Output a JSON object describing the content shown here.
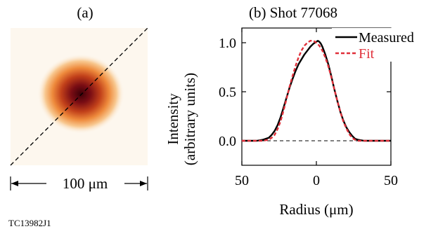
{
  "figure_id": "TC13982J1",
  "panel_a": {
    "label": "(a)",
    "scale_label": "100 μm"
  },
  "colors": {
    "measured": "#000000",
    "fit": "#e0303a",
    "spot_core": "#5a0010",
    "spot_mid": "#c1401a",
    "spot_outer": "#f4a86a",
    "spot_bg": "#fdf7ee"
  },
  "chart_data": {
    "type": "line",
    "title": "(b) Shot 77068",
    "xlabel": "Radius (μm)",
    "ylabel": [
      "Intensity",
      "(arbitrary units)"
    ],
    "xlim": [
      -50,
      50
    ],
    "ylim": [
      -0.25,
      1.15
    ],
    "x_ticks": [
      -50,
      0,
      50
    ],
    "x_tick_labels": [
      "50",
      "0",
      "50"
    ],
    "y_ticks": [
      0.0,
      0.5,
      1.0
    ],
    "y_tick_labels": [
      "0.0",
      "0.5",
      "1.0"
    ],
    "legend": "top-right",
    "series": [
      {
        "name": "Measured",
        "color": "#000000",
        "dash": "solid",
        "x": [
          -50,
          -40,
          -36,
          -32,
          -30,
          -28,
          -26,
          -24,
          -22,
          -20,
          -18,
          -16,
          -14,
          -12,
          -10,
          -8,
          -6,
          -4,
          -2,
          0,
          1,
          2,
          3,
          4,
          6,
          8,
          10,
          12,
          14,
          16,
          18,
          20,
          22,
          24,
          26,
          28,
          30,
          32,
          36,
          40,
          50
        ],
        "y": [
          0.0,
          0.0,
          0.01,
          0.03,
          0.06,
          0.1,
          0.16,
          0.24,
          0.34,
          0.44,
          0.54,
          0.63,
          0.71,
          0.78,
          0.83,
          0.88,
          0.92,
          0.96,
          0.99,
          1.01,
          1.02,
          1.01,
          0.99,
          0.96,
          0.88,
          0.78,
          0.66,
          0.53,
          0.41,
          0.3,
          0.21,
          0.14,
          0.09,
          0.05,
          0.02,
          0.01,
          0.005,
          0.0,
          0.0,
          0.0,
          0.0
        ]
      },
      {
        "name": "Fit",
        "color": "#e0303a",
        "dash": "dashed",
        "x": [
          -50,
          -40,
          -36,
          -32,
          -30,
          -28,
          -26,
          -24,
          -22,
          -20,
          -18,
          -16,
          -14,
          -12,
          -10,
          -8,
          -6,
          -4,
          -2,
          0,
          2,
          4,
          6,
          8,
          10,
          12,
          14,
          16,
          18,
          20,
          22,
          24,
          26,
          28,
          30,
          32,
          36,
          40,
          50
        ],
        "y": [
          0.0,
          0.0,
          0.0,
          0.01,
          0.03,
          0.06,
          0.12,
          0.2,
          0.31,
          0.43,
          0.55,
          0.66,
          0.76,
          0.85,
          0.92,
          0.97,
          1.0,
          1.02,
          1.02,
          1.0,
          0.97,
          0.92,
          0.85,
          0.76,
          0.65,
          0.53,
          0.41,
          0.3,
          0.2,
          0.13,
          0.07,
          0.03,
          0.01,
          0.0,
          0.0,
          0.0,
          0.0,
          0.0,
          0.0
        ]
      }
    ],
    "reference_line": {
      "y": 0.0,
      "style": "dashed"
    }
  }
}
